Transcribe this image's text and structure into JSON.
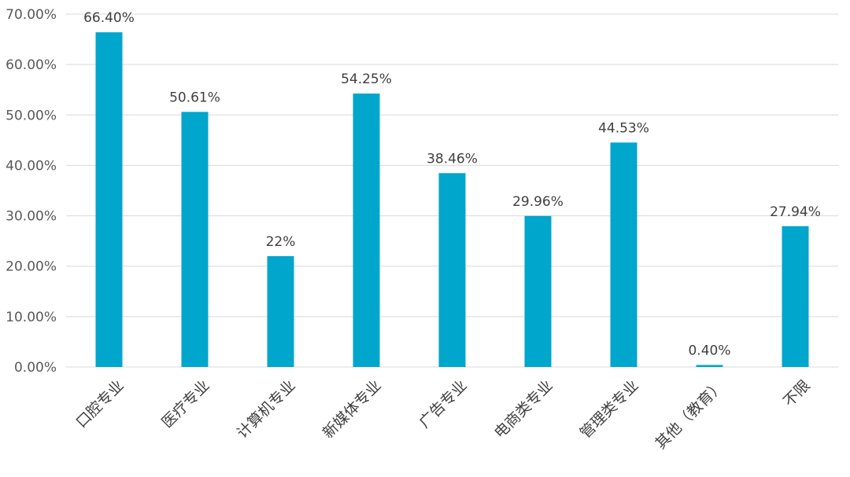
{
  "chart_data": {
    "type": "bar",
    "title": "",
    "xlabel": "",
    "ylabel": "",
    "categories": [
      "口腔专业",
      "医疗专业",
      "计算机专业",
      "新媒体专业",
      "广告专业",
      "电商类专业",
      "管理类专业",
      "其他（教育）",
      "不限"
    ],
    "values": [
      66.4,
      50.61,
      22,
      54.25,
      38.46,
      29.96,
      44.53,
      0.4,
      27.94
    ],
    "data_labels": [
      "66.40%",
      "50.61%",
      "22%",
      "54.25%",
      "38.46%",
      "29.96%",
      "44.53%",
      "0.40%",
      "27.94%"
    ],
    "ylim": [
      0,
      70
    ],
    "yticks": [
      0,
      10,
      20,
      30,
      40,
      50,
      60,
      70
    ],
    "ytick_labels": [
      "0.00%",
      "10.00%",
      "20.00%",
      "30.00%",
      "40.00%",
      "50.00%",
      "60.00%",
      "70.00%"
    ],
    "grid": true,
    "legend": "none",
    "bar_color": "#00A6CB",
    "grid_color": "#D9D9D9"
  }
}
